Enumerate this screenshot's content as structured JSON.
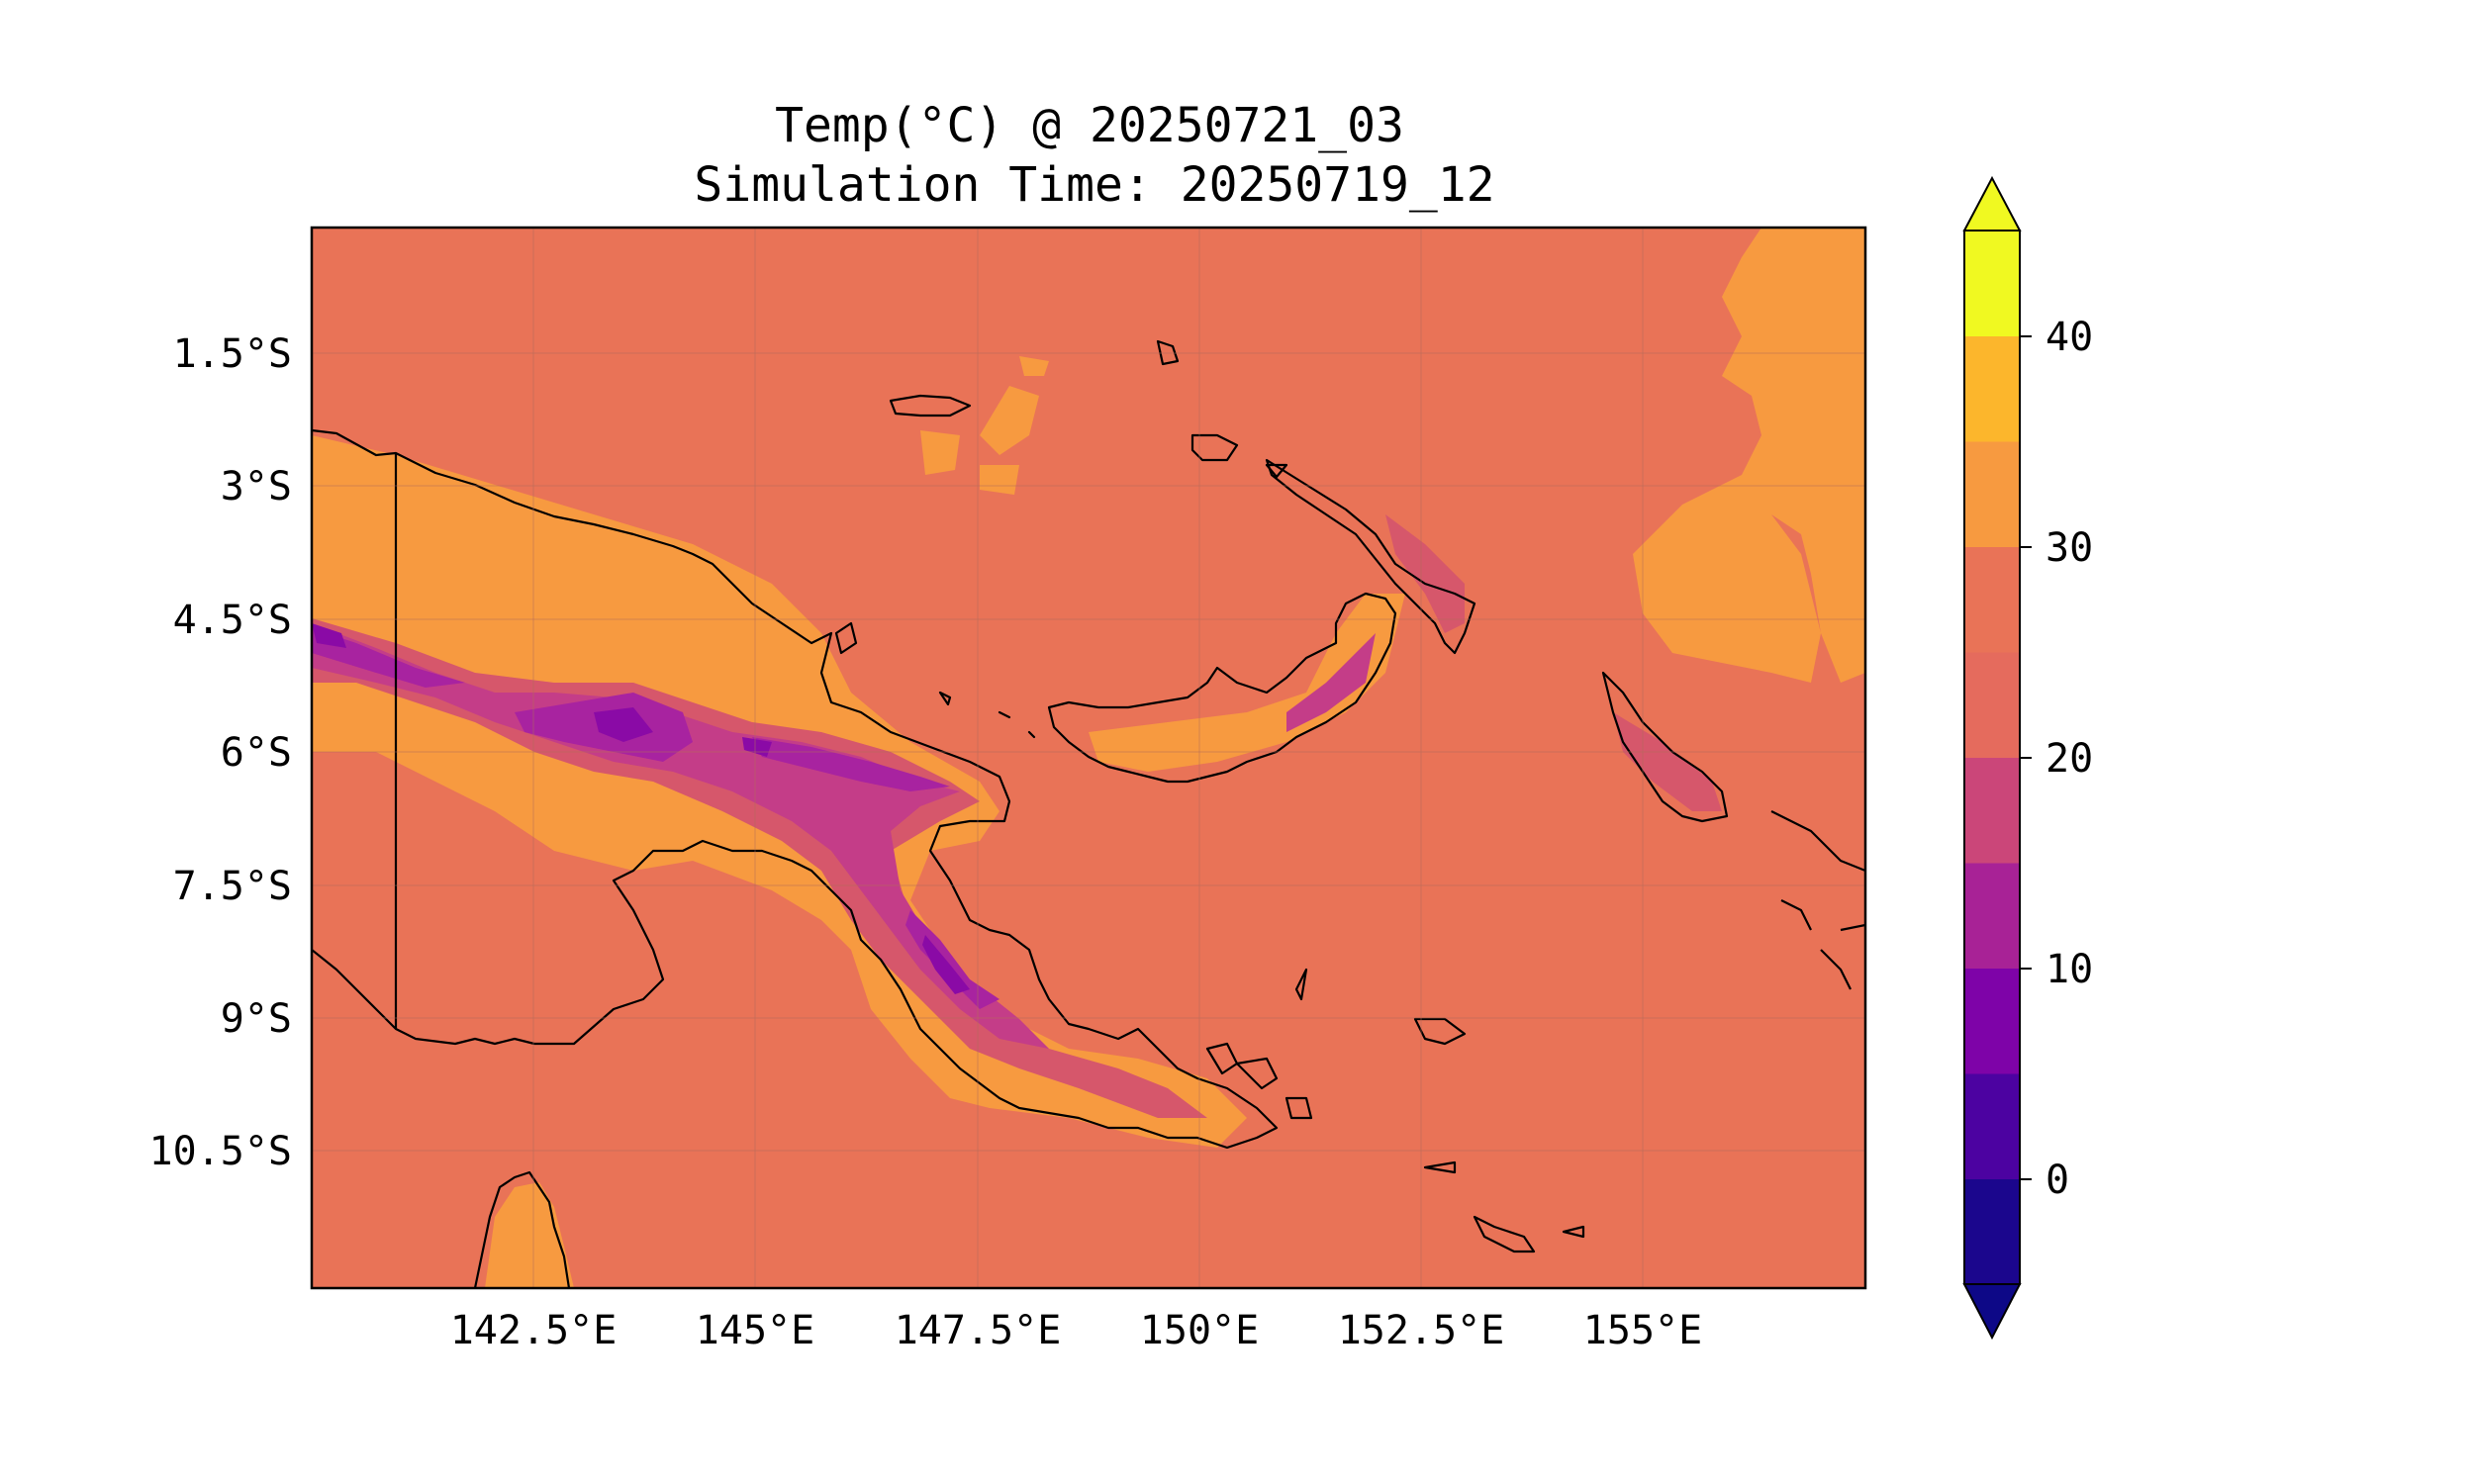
{
  "title": {
    "line1": "Temp(°C) @ 20250721_03",
    "line2": "Simulation Time: 20250719_12"
  },
  "map": {
    "lon_range": [
      140.0,
      157.5
    ],
    "lat_range": [
      -12.0,
      -0.0
    ],
    "x_ticks": [
      "142.5°E",
      "145°E",
      "147.5°E",
      "150°E",
      "152.5°E",
      "155°E"
    ],
    "y_ticks": [
      "1.5°S",
      "3°S",
      "4.5°S",
      "6°S",
      "7.5°S",
      "9°S",
      "10.5°S"
    ],
    "ocean_color": "#e97357",
    "band_colors": {
      "25-30": "#e97357",
      "30-35": "#f79a40",
      "20-25": "#d6576b",
      "15-20": "#c43d88",
      "10-15": "#a823a0",
      "5-10": "#8a0aa6"
    }
  },
  "colorbar": {
    "tick_labels": [
      "0",
      "10",
      "20",
      "30",
      "40"
    ],
    "levels": [
      -5,
      0,
      5,
      10,
      15,
      20,
      25,
      30,
      35,
      40,
      45
    ],
    "colors": [
      "#1b068d",
      "#4c02a1",
      "#7e03a8",
      "#a82296",
      "#cb4679",
      "#e56b5d",
      "#e97357",
      "#f79a40",
      "#fcb62c",
      "#f0f921"
    ],
    "under_color": "#0d0887",
    "over_color": "#f0f921"
  }
}
